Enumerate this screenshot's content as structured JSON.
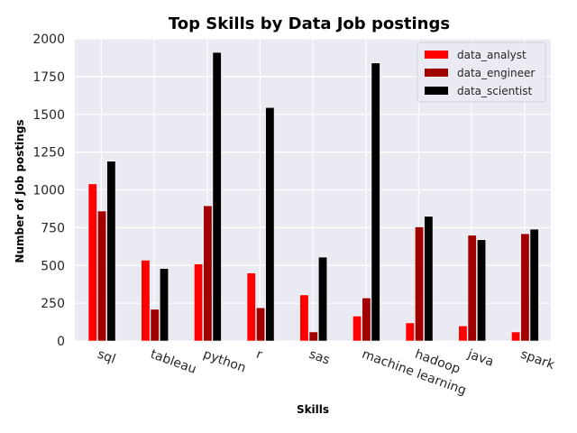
{
  "chart_data": {
    "type": "bar",
    "title": "Top Skills by Data Job postings",
    "xlabel": "Skills",
    "ylabel": "Number of Job postings",
    "categories": [
      "sql",
      "tableau",
      "python",
      "r",
      "sas",
      "machine learning",
      "hadoop",
      "java",
      "spark"
    ],
    "series": [
      {
        "name": "data_analyst",
        "color": "#ff0000",
        "values": [
          1040,
          535,
          510,
          450,
          305,
          165,
          120,
          100,
          60
        ]
      },
      {
        "name": "data_engineer",
        "color": "#a00000",
        "values": [
          860,
          210,
          895,
          220,
          60,
          285,
          755,
          700,
          710
        ]
      },
      {
        "name": "data_scientist",
        "color": "#000000",
        "values": [
          1190,
          480,
          1910,
          1545,
          555,
          1840,
          825,
          670,
          740
        ]
      }
    ],
    "ylim": [
      0,
      2000
    ],
    "yticks": [
      0,
      250,
      500,
      750,
      1000,
      1250,
      1500,
      1750,
      2000
    ],
    "grid": true,
    "legend_position": "top-right",
    "background_color": "#eaeaf2"
  }
}
